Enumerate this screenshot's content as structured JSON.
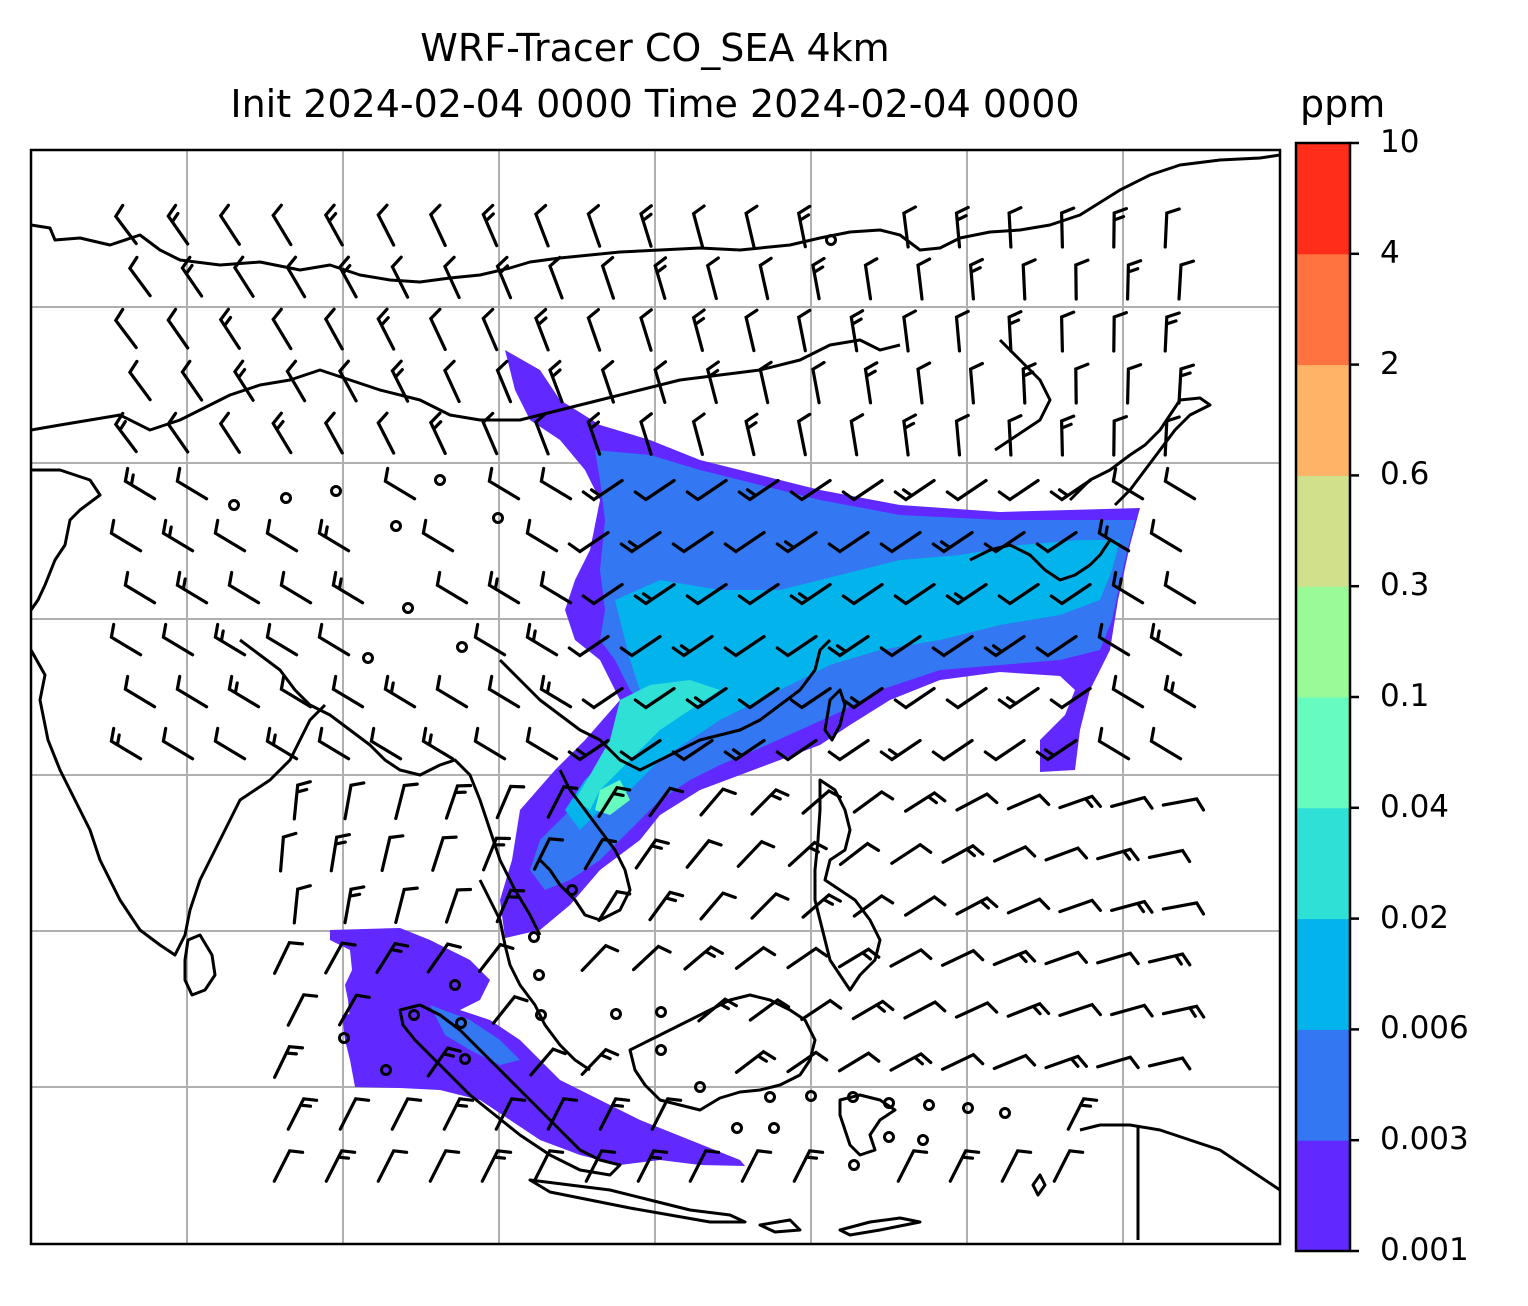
{
  "title": {
    "line1": "WRF-Tracer CO_SEA 4km",
    "line2": "Init 2024-02-04 0000 Time 2024-02-04 0000"
  },
  "colorbar": {
    "unit": "ppm",
    "levels": [
      {
        "label": "0.001",
        "color": "#6129ff"
      },
      {
        "label": "0.003",
        "color": "#3377f2"
      },
      {
        "label": "0.006",
        "color": "#03b3eb"
      },
      {
        "label": "0.02",
        "color": "#2ee0d6"
      },
      {
        "label": "0.04",
        "color": "#66fcbf"
      },
      {
        "label": "0.1",
        "color": "#98fb98"
      },
      {
        "label": "0.3",
        "color": "#d1e08a"
      },
      {
        "label": "0.6",
        "color": "#ffb366"
      },
      {
        "label": "2",
        "color": "#ff7340"
      },
      {
        "label": "4",
        "color": "#ff2d1a"
      },
      {
        "label": "10",
        "color": null
      }
    ]
  },
  "map": {
    "gridlines": true,
    "background": "#ffffff",
    "coastline_color": "#000000",
    "gridline_color": "#b0b0b0",
    "contents": [
      "coastlines",
      "wind-barbs",
      "tracer-concentration"
    ]
  }
}
